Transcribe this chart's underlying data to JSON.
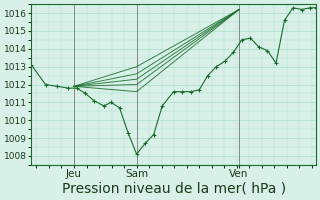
{
  "bg_color": "#d8f0e8",
  "grid_color": "#aaddcc",
  "line_color": "#1a6b2a",
  "marker_color": "#1a6b2a",
  "xlabel": "Pression niveau de la mer( hPa )",
  "xlabel_fontsize": 10,
  "ylim": [
    1007.5,
    1016.5
  ],
  "yticks": [
    1008,
    1009,
    1010,
    1011,
    1012,
    1013,
    1014,
    1015,
    1016
  ],
  "xtick_labels": [
    "Jeu",
    "Sam",
    "Ven"
  ],
  "xtick_positions": [
    0.15,
    0.37,
    0.73
  ],
  "vline_positions": [
    0.15,
    0.37,
    0.73
  ],
  "series": [
    [
      0.0,
      1013.1,
      0.05,
      1012.0,
      0.09,
      1011.9,
      0.13,
      1011.8,
      0.16,
      1011.8,
      0.19,
      1011.5,
      0.22,
      1011.1,
      0.255,
      1010.8,
      0.28,
      1011.0,
      0.31,
      1010.7,
      0.34,
      1009.3,
      0.37,
      1008.1,
      0.4,
      1008.7,
      0.43,
      1009.2,
      0.46,
      1010.8,
      0.5,
      1011.6,
      0.53,
      1011.6,
      0.56,
      1011.6,
      0.59,
      1011.7,
      0.62,
      1012.5,
      0.65,
      1013.0,
      0.68,
      1013.3,
      0.71,
      1013.8,
      0.74,
      1014.5,
      0.77,
      1014.6,
      0.8,
      1014.1,
      0.83,
      1013.9,
      0.86,
      1013.2,
      0.89,
      1015.6,
      0.92,
      1016.3,
      0.95,
      1016.2,
      0.98,
      1016.3,
      1.0,
      1016.3
    ],
    [
      0.15,
      1011.9,
      0.37,
      1012.0,
      0.73,
      1016.2
    ],
    [
      0.15,
      1011.9,
      0.37,
      1011.6,
      0.73,
      1016.2
    ],
    [
      0.15,
      1011.9,
      0.37,
      1012.3,
      0.73,
      1016.2
    ],
    [
      0.15,
      1011.9,
      0.37,
      1012.6,
      0.73,
      1016.2
    ],
    [
      0.15,
      1011.9,
      0.37,
      1013.0,
      0.73,
      1016.2
    ]
  ]
}
